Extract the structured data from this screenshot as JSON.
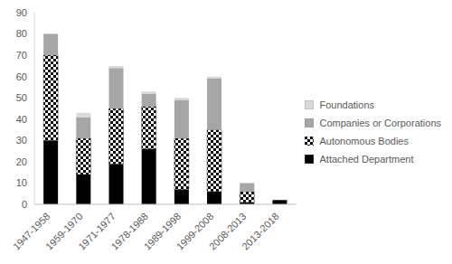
{
  "chart_data": {
    "type": "bar",
    "stacked": true,
    "grid": false,
    "legend": "right",
    "categories": [
      "1947-1958",
      "1959-1970",
      "1971-1977",
      "1978-1988",
      "1989-1998",
      "1999-2008",
      "2008-2013",
      "2013-2018"
    ],
    "series": [
      {
        "name": "Attached Department",
        "color": "#000000",
        "values": [
          30,
          14,
          19,
          26,
          7,
          6,
          1,
          2
        ]
      },
      {
        "name": "Autonomous Bodies",
        "color": "#000000",
        "values": [
          40,
          17,
          26,
          20,
          24,
          29,
          5,
          0
        ]
      },
      {
        "name": "Companies or Corporations",
        "color": "#a6a6a6",
        "values": [
          10,
          10,
          19,
          6,
          18,
          24,
          4,
          0
        ]
      },
      {
        "name": "Foundations",
        "color": "#d9d9d9",
        "values": [
          0,
          2,
          1,
          1,
          1,
          1,
          0,
          0
        ]
      }
    ],
    "ylim": [
      0,
      90
    ],
    "yticks": [
      0,
      10,
      20,
      30,
      40,
      50,
      60,
      70,
      80,
      90
    ]
  }
}
